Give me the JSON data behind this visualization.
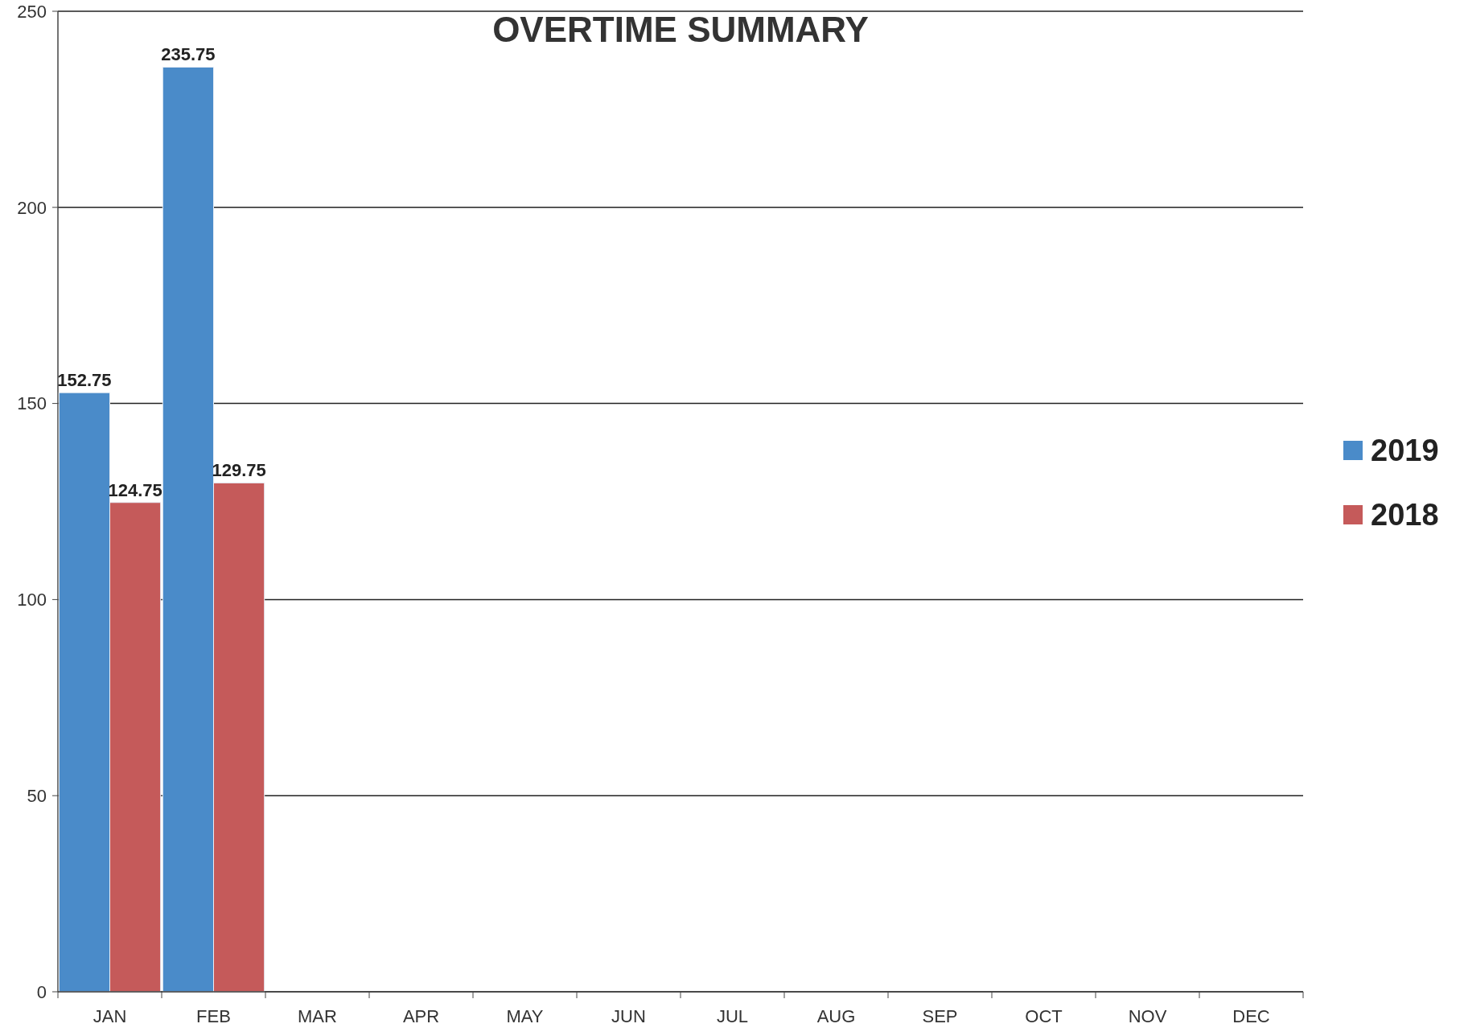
{
  "chart_data": {
    "type": "bar",
    "title": "OVERTIME SUMMARY",
    "categories": [
      "JAN",
      "FEB",
      "MAR",
      "APR",
      "MAY",
      "JUN",
      "JUL",
      "AUG",
      "SEP",
      "OCT",
      "NOV",
      "DEC"
    ],
    "series": [
      {
        "name": "2019",
        "color": "#4a8bc9",
        "values": [
          152.75,
          235.75,
          null,
          null,
          null,
          null,
          null,
          null,
          null,
          null,
          null,
          null
        ]
      },
      {
        "name": "2018",
        "color": "#c55a5a",
        "values": [
          124.75,
          129.75,
          null,
          null,
          null,
          null,
          null,
          null,
          null,
          null,
          null,
          null
        ]
      }
    ],
    "ylim": [
      0,
      250
    ],
    "yticks": [
      0,
      50,
      100,
      150,
      200,
      250
    ],
    "grid": "y",
    "legend": "right",
    "data_labels": true
  }
}
